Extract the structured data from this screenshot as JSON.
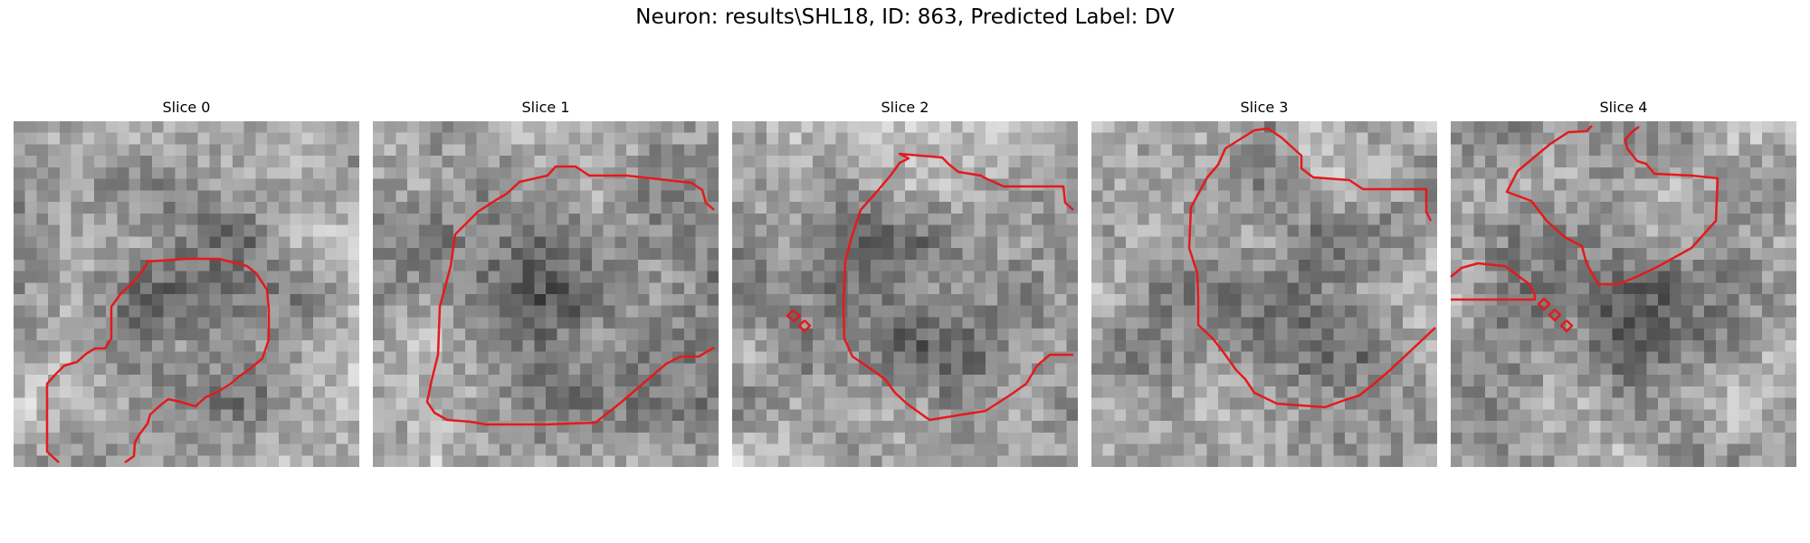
{
  "figure": {
    "title": "Neuron: results\\SHL18, ID: 863, Predicted Label: DV"
  },
  "colors": {
    "contour": "#e41a1c",
    "background": "#ffffff"
  },
  "slices": [
    {
      "title": "Slice 0"
    },
    {
      "title": "Slice 1"
    },
    {
      "title": "Slice 2"
    },
    {
      "title": "Slice 3"
    },
    {
      "title": "Slice 4"
    }
  ]
}
